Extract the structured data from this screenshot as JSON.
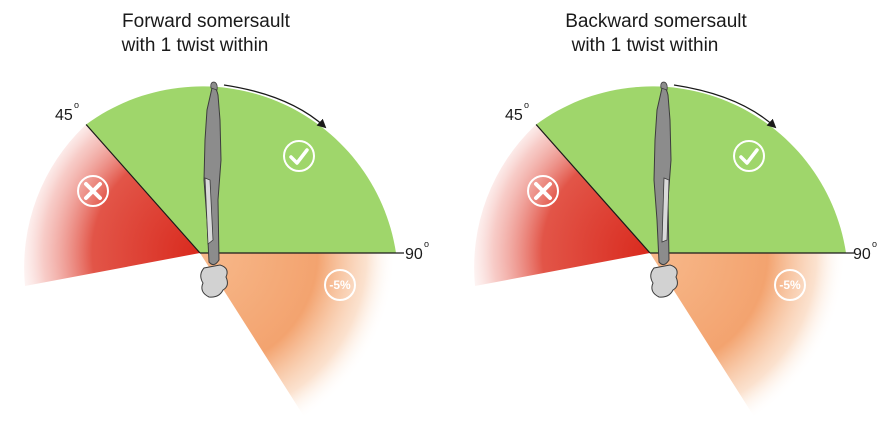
{
  "panels": [
    {
      "title_line1": "Forward somersault",
      "title_line2": "with 1 twist within",
      "angle_45": "45",
      "angle_90": "90",
      "degree_symbol": "o",
      "penalty": "-5%",
      "icons": [
        "cross-icon",
        "check-icon"
      ]
    },
    {
      "title_line1": "Backward somersault",
      "title_line2": "with 1 twist within",
      "angle_45": "45",
      "angle_90": "90",
      "degree_symbol": "o",
      "penalty": "-5%",
      "icons": [
        "cross-icon",
        "check-icon"
      ]
    }
  ],
  "colors": {
    "accepted": "#9fd66b",
    "deduction": "#f3a36f",
    "failed": "#d92a1e",
    "body": "#8c8c8c"
  }
}
